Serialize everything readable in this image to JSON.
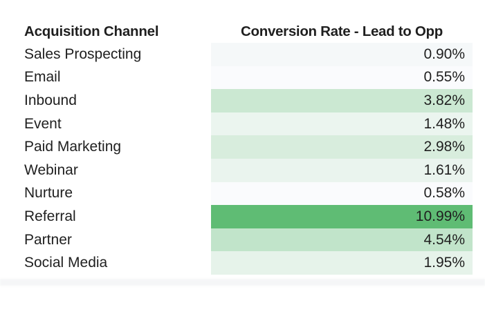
{
  "table": {
    "headers": {
      "channel": "Acquisition Channel",
      "rate": "Conversion Rate - Lead to Opp"
    },
    "rows": [
      {
        "channel": "Sales Prospecting",
        "rate": "0.90%",
        "color": "#F5F8F9"
      },
      {
        "channel": "Email",
        "rate": "0.55%",
        "color": "#FAFBFD"
      },
      {
        "channel": "Inbound",
        "rate": "3.82%",
        "color": "#CBE8D2"
      },
      {
        "channel": "Event",
        "rate": "1.48%",
        "color": "#EBF5EF"
      },
      {
        "channel": "Paid Marketing",
        "rate": "2.98%",
        "color": "#D8EDDD"
      },
      {
        "channel": "Webinar",
        "rate": "1.61%",
        "color": "#EAF4EE"
      },
      {
        "channel": "Nurture",
        "rate": "0.58%",
        "color": "#FAFBFD"
      },
      {
        "channel": "Referral",
        "rate": "10.99%",
        "color": "#5FBC74"
      },
      {
        "channel": "Partner",
        "rate": "4.54%",
        "color": "#C1E4CA"
      },
      {
        "channel": "Social Media",
        "rate": "1.95%",
        "color": "#E6F3EA"
      }
    ]
  },
  "chart_data": {
    "type": "table",
    "title": "",
    "columns": [
      "Acquisition Channel",
      "Conversion Rate - Lead to Opp"
    ],
    "categories": [
      "Sales Prospecting",
      "Email",
      "Inbound",
      "Event",
      "Paid Marketing",
      "Webinar",
      "Nurture",
      "Referral",
      "Partner",
      "Social Media"
    ],
    "values": [
      0.9,
      0.55,
      3.82,
      1.48,
      2.98,
      1.61,
      0.58,
      10.99,
      4.54,
      1.95
    ],
    "value_format": "percent",
    "value_range": [
      0.55,
      10.99
    ],
    "conditional_format": {
      "style": "2-color-scale",
      "applies_to": "Conversion Rate - Lead to Opp",
      "min_color": "#FCFDFE",
      "max_color": "#5FBC74"
    },
    "text_color": "#1F1F1F",
    "background_color": "#FFFFFF"
  }
}
